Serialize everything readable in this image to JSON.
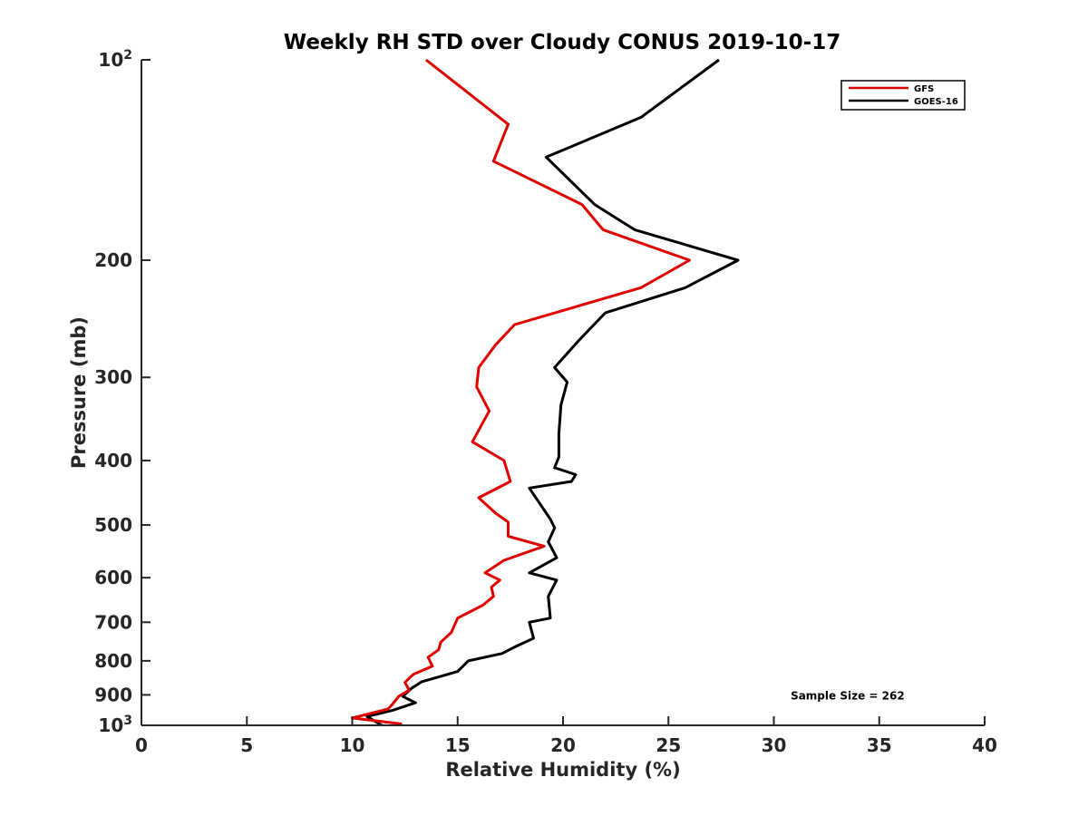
{
  "chart_data": {
    "type": "line",
    "title": "Weekly RH STD over Cloudy CONUS 2019-10-17",
    "xlabel": "Relative Humidity (%)",
    "ylabel": "Pressure (mb)",
    "xlim": [
      0,
      40
    ],
    "ylim": [
      100,
      1000
    ],
    "y_scale": "log",
    "y_reversed": true,
    "grid": false,
    "legend_position": "top-right",
    "x_ticks": [
      {
        "value": 0,
        "label": "0"
      },
      {
        "value": 5,
        "label": "5"
      },
      {
        "value": 10,
        "label": "10"
      },
      {
        "value": 15,
        "label": "15"
      },
      {
        "value": 20,
        "label": "20"
      },
      {
        "value": 25,
        "label": "25"
      },
      {
        "value": 30,
        "label": "30"
      },
      {
        "value": 35,
        "label": "35"
      },
      {
        "value": 40,
        "label": "40"
      }
    ],
    "y_ticks": [
      {
        "value": 100,
        "base": "10",
        "exp": "2"
      },
      {
        "value": 200,
        "label": "200"
      },
      {
        "value": 300,
        "label": "300"
      },
      {
        "value": 400,
        "label": "400"
      },
      {
        "value": 500,
        "label": "500"
      },
      {
        "value": 600,
        "label": "600"
      },
      {
        "value": 700,
        "label": "700"
      },
      {
        "value": 800,
        "label": "800"
      },
      {
        "value": 900,
        "label": "900"
      },
      {
        "value": 1000,
        "base": "10",
        "exp": "3"
      }
    ],
    "series": [
      {
        "name": "GFS",
        "color": "#e00000",
        "x": [
          13.5,
          17.4,
          16.7,
          20.9,
          21.9,
          26.0,
          23.7,
          17.7,
          16.8,
          16.0,
          15.9,
          16.5,
          15.7,
          17.2,
          17.5,
          16.0,
          16.8,
          17.4,
          17.4,
          19.1,
          17.2,
          16.3,
          17.0,
          16.6,
          16.7,
          16.2,
          15.0,
          14.7,
          14.2,
          14.1,
          13.6,
          13.8,
          12.9,
          12.5,
          12.7,
          12.2,
          11.9,
          11.7,
          10.0,
          12.3,
          12.2
        ],
        "y": [
          100,
          125,
          142,
          165,
          180,
          200,
          220,
          250,
          268,
          290,
          310,
          337,
          375,
          400,
          430,
          455,
          480,
          495,
          520,
          538,
          565,
          590,
          605,
          620,
          640,
          660,
          690,
          725,
          750,
          770,
          790,
          815,
          838,
          862,
          885,
          905,
          930,
          945,
          975,
          995,
          1000
        ]
      },
      {
        "name": "GOES-16",
        "color": "#000000",
        "x": [
          27.4,
          23.7,
          19.2,
          21.5,
          23.4,
          28.3,
          25.8,
          22.0,
          20.7,
          19.6,
          20.2,
          19.9,
          19.8,
          19.8,
          19.6,
          20.6,
          20.4,
          18.4,
          19.4,
          19.6,
          19.3,
          19.7,
          18.4,
          19.7,
          19.3,
          19.4,
          18.4,
          18.6,
          17.8,
          17.1,
          15.5,
          15.0,
          13.3,
          12.8,
          12.4,
          13.0,
          11.9,
          10.7,
          11.4
        ],
        "y": [
          100,
          122,
          140,
          165,
          180,
          200,
          220,
          240,
          265,
          290,
          305,
          330,
          365,
          395,
          410,
          420,
          430,
          440,
          490,
          505,
          530,
          560,
          590,
          605,
          640,
          690,
          700,
          740,
          760,
          780,
          800,
          830,
          860,
          880,
          905,
          925,
          950,
          970,
          1000
        ]
      }
    ],
    "annotations": [
      {
        "text": "Sample Size = 262",
        "x": 33.5,
        "y": 900
      }
    ]
  }
}
